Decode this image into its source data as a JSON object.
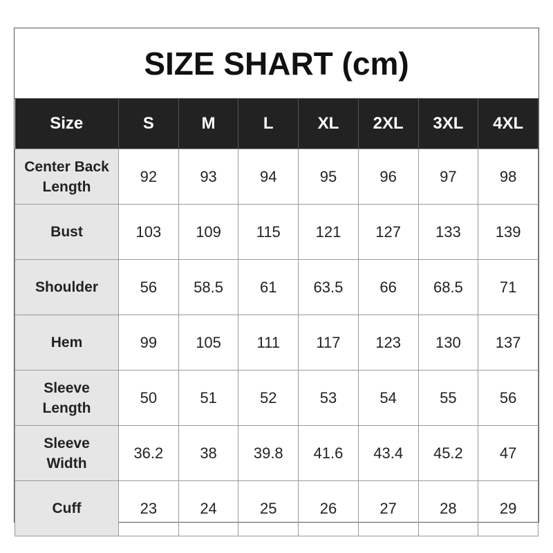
{
  "title": "SIZE SHART (cm)",
  "headers": [
    "Size",
    "S",
    "M",
    "L",
    "XL",
    "2XL",
    "3XL",
    "4XL"
  ],
  "rows": [
    {
      "label": [
        "Center Back",
        "Length"
      ],
      "values": [
        "92",
        "93",
        "94",
        "95",
        "96",
        "97",
        "98"
      ]
    },
    {
      "label": [
        "Bust"
      ],
      "values": [
        "103",
        "109",
        "115",
        "121",
        "127",
        "133",
        "139"
      ]
    },
    {
      "label": [
        "Shoulder"
      ],
      "values": [
        "56",
        "58.5",
        "61",
        "63.5",
        "66",
        "68.5",
        "71"
      ]
    },
    {
      "label": [
        "Hem"
      ],
      "values": [
        "99",
        "105",
        "111",
        "117",
        "123",
        "130",
        "137"
      ]
    },
    {
      "label": [
        "Sleeve",
        "Length"
      ],
      "values": [
        "50",
        "51",
        "52",
        "53",
        "54",
        "55",
        "56"
      ]
    },
    {
      "label": [
        "Sleeve",
        "Width"
      ],
      "values": [
        "36.2",
        "38",
        "39.8",
        "41.6",
        "43.4",
        "45.2",
        "47"
      ]
    },
    {
      "label": [
        "Cuff"
      ],
      "values": [
        "23",
        "24",
        "25",
        "26",
        "27",
        "28",
        "29"
      ]
    }
  ]
}
